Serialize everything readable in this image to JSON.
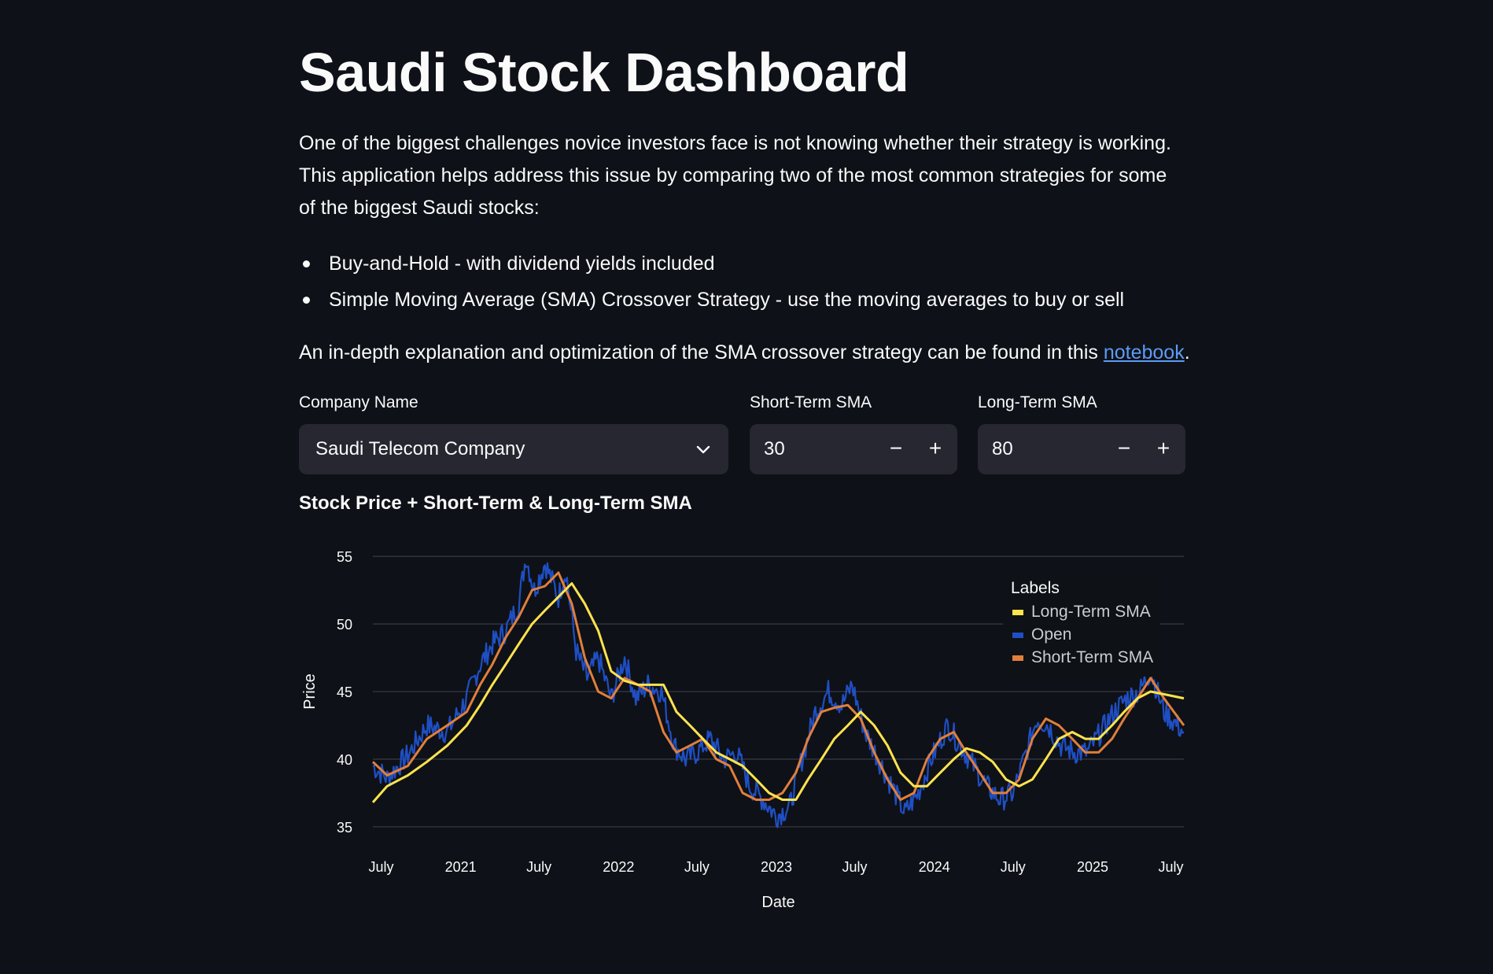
{
  "page": {
    "title": "Saudi Stock Dashboard",
    "intro": "One of the biggest challenges novice investors face is not knowing whether their strategy is working. This application helps address this issue by comparing two of the most common strategies for some of the biggest Saudi stocks:",
    "bullets": [
      "Buy-and-Hold - with dividend yields included",
      "Simple Moving Average (SMA) Crossover Strategy - use the moving averages to buy or sell"
    ],
    "notebook_prefix": "An in-depth explanation and optimization of the SMA crossover strategy can be found in this ",
    "notebook_link": "notebook",
    "notebook_suffix": "."
  },
  "controls": {
    "company_label": "Company Name",
    "company_value": "Saudi Telecom Company",
    "short_label": "Short-Term SMA",
    "short_value": "30",
    "long_label": "Long-Term SMA",
    "long_value": "80",
    "minus": "−",
    "plus": "+"
  },
  "chart_title": "Stock Price + Short-Term & Long-Term SMA",
  "legend": {
    "title": "Labels",
    "items": [
      "Long-Term SMA",
      "Open",
      "Short-Term SMA"
    ]
  },
  "colors": {
    "open": "#1f4fc4",
    "short_sma": "#e07f3c",
    "long_sma": "#ffe34d",
    "background": "#0e1117",
    "grid": "#31333f"
  },
  "chart_data": {
    "type": "line",
    "xlabel": "Date",
    "ylabel": "Price",
    "ylim": [
      34,
      56
    ],
    "yticks": [
      35,
      40,
      45,
      50,
      55
    ],
    "x_range": [
      "2020-06-12",
      "2025-07-31"
    ],
    "xticks": [
      {
        "date": "2020-07-01",
        "label": "July"
      },
      {
        "date": "2021-01-01",
        "label": "2021"
      },
      {
        "date": "2021-07-01",
        "label": "July"
      },
      {
        "date": "2022-01-01",
        "label": "2022"
      },
      {
        "date": "2022-07-01",
        "label": "July"
      },
      {
        "date": "2023-01-01",
        "label": "2023"
      },
      {
        "date": "2023-07-01",
        "label": "July"
      },
      {
        "date": "2024-01-01",
        "label": "2024"
      },
      {
        "date": "2024-07-01",
        "label": "July"
      },
      {
        "date": "2025-01-01",
        "label": "2025"
      },
      {
        "date": "2025-07-01",
        "label": "July"
      }
    ],
    "grid": true,
    "legend_position": "top-right",
    "series": [
      {
        "name": "Open",
        "x": [
          "2020-06-12",
          "2020-07-15",
          "2020-09-01",
          "2020-10-15",
          "2020-12-01",
          "2021-01-15",
          "2021-02-15",
          "2021-03-15",
          "2021-04-15",
          "2021-05-15",
          "2021-06-01",
          "2021-06-20",
          "2021-07-15",
          "2021-08-15",
          "2021-09-01",
          "2021-09-25",
          "2021-10-20",
          "2021-11-15",
          "2021-12-15",
          "2022-01-15",
          "2022-02-10",
          "2022-03-10",
          "2022-04-10",
          "2022-05-10",
          "2022-06-05",
          "2022-07-01",
          "2022-08-01",
          "2022-09-01",
          "2022-10-01",
          "2022-11-01",
          "2022-12-01",
          "2023-01-01",
          "2023-02-01",
          "2023-03-01",
          "2023-04-01",
          "2023-05-01",
          "2023-06-01",
          "2023-06-25",
          "2023-07-25",
          "2023-08-25",
          "2023-09-25",
          "2023-10-25",
          "2023-11-25",
          "2023-12-25",
          "2024-02-01",
          "2024-03-01",
          "2024-04-01",
          "2024-05-01",
          "2024-06-01",
          "2024-07-01",
          "2024-08-01",
          "2024-08-25",
          "2024-09-20",
          "2024-10-20",
          "2024-11-20",
          "2024-12-20",
          "2025-01-20",
          "2025-02-20",
          "2025-03-20",
          "2025-04-20",
          "2025-05-15",
          "2025-06-15",
          "2025-07-31"
        ],
        "y": [
          39.5,
          38.6,
          40.3,
          42.5,
          42.0,
          44.5,
          47.0,
          48.5,
          49.5,
          51.5,
          55.0,
          52.5,
          54.5,
          52.0,
          54.0,
          48.0,
          46.0,
          47.5,
          44.5,
          47.5,
          44.5,
          45.5,
          45.0,
          41.0,
          40.0,
          40.5,
          41.5,
          40.0,
          40.5,
          38.0,
          37.0,
          35.8,
          36.5,
          40.0,
          43.5,
          45.0,
          44.0,
          45.5,
          42.0,
          40.0,
          38.0,
          36.0,
          37.5,
          40.0,
          42.5,
          41.0,
          39.5,
          38.0,
          37.0,
          37.5,
          40.5,
          43.0,
          42.5,
          41.0,
          40.5,
          40.5,
          42.0,
          43.5,
          44.5,
          45.0,
          46.5,
          43.5,
          42.0
        ]
      },
      {
        "name": "Short-Term SMA",
        "x": [
          "2020-06-12",
          "2020-07-15",
          "2020-09-01",
          "2020-10-15",
          "2020-12-01",
          "2021-01-15",
          "2021-02-15",
          "2021-03-15",
          "2021-04-15",
          "2021-05-15",
          "2021-06-15",
          "2021-07-15",
          "2021-08-15",
          "2021-09-15",
          "2021-10-15",
          "2021-11-15",
          "2021-12-15",
          "2022-01-15",
          "2022-02-15",
          "2022-03-15",
          "2022-04-15",
          "2022-05-15",
          "2022-06-15",
          "2022-07-15",
          "2022-08-15",
          "2022-09-15",
          "2022-10-15",
          "2022-11-15",
          "2022-12-15",
          "2023-01-15",
          "2023-02-15",
          "2023-03-15",
          "2023-04-15",
          "2023-05-15",
          "2023-06-15",
          "2023-07-15",
          "2023-08-15",
          "2023-09-15",
          "2023-10-15",
          "2023-11-15",
          "2023-12-15",
          "2024-01-15",
          "2024-02-15",
          "2024-03-15",
          "2024-04-15",
          "2024-05-15",
          "2024-06-15",
          "2024-07-15",
          "2024-08-15",
          "2024-09-15",
          "2024-10-15",
          "2024-11-15",
          "2024-12-15",
          "2025-01-15",
          "2025-02-15",
          "2025-03-15",
          "2025-04-15",
          "2025-05-15",
          "2025-06-15",
          "2025-07-31"
        ],
        "y": [
          39.8,
          38.8,
          39.5,
          41.5,
          42.5,
          43.5,
          45.5,
          47.0,
          49.0,
          50.5,
          52.5,
          52.8,
          53.8,
          51.5,
          47.5,
          45.0,
          44.5,
          46.0,
          45.5,
          45.0,
          42.0,
          40.5,
          41.0,
          41.5,
          40.0,
          39.5,
          37.5,
          37.0,
          37.0,
          37.5,
          39.0,
          41.5,
          43.5,
          43.8,
          44.0,
          43.0,
          40.5,
          38.5,
          37.0,
          37.5,
          40.0,
          41.5,
          42.0,
          40.5,
          39.0,
          37.5,
          37.5,
          38.5,
          41.5,
          43.0,
          42.5,
          41.5,
          40.5,
          40.5,
          41.5,
          43.0,
          44.5,
          46.0,
          44.5,
          42.5
        ]
      },
      {
        "name": "Long-Term SMA",
        "x": [
          "2020-06-12",
          "2020-07-15",
          "2020-09-01",
          "2020-10-15",
          "2020-12-01",
          "2021-01-15",
          "2021-02-15",
          "2021-03-15",
          "2021-04-15",
          "2021-05-15",
          "2021-06-15",
          "2021-07-15",
          "2021-08-15",
          "2021-09-15",
          "2021-10-15",
          "2021-11-15",
          "2021-12-15",
          "2022-01-15",
          "2022-02-15",
          "2022-03-15",
          "2022-04-15",
          "2022-05-15",
          "2022-06-15",
          "2022-07-15",
          "2022-08-15",
          "2022-09-15",
          "2022-10-15",
          "2022-11-15",
          "2022-12-15",
          "2023-01-15",
          "2023-02-15",
          "2023-03-15",
          "2023-04-15",
          "2023-05-15",
          "2023-06-15",
          "2023-07-15",
          "2023-08-15",
          "2023-09-15",
          "2023-10-15",
          "2023-11-15",
          "2023-12-15",
          "2024-01-15",
          "2024-02-15",
          "2024-03-15",
          "2024-04-15",
          "2024-05-15",
          "2024-06-15",
          "2024-07-15",
          "2024-08-15",
          "2024-09-15",
          "2024-10-15",
          "2024-11-15",
          "2024-12-15",
          "2025-01-15",
          "2025-02-15",
          "2025-03-15",
          "2025-04-15",
          "2025-05-15",
          "2025-06-15",
          "2025-07-31"
        ],
        "y": [
          36.8,
          38.0,
          38.8,
          39.8,
          41.0,
          42.5,
          44.0,
          45.5,
          47.0,
          48.5,
          50.0,
          51.0,
          52.0,
          53.0,
          51.5,
          49.5,
          46.5,
          45.8,
          45.5,
          45.5,
          45.5,
          43.5,
          42.5,
          41.5,
          40.5,
          40.0,
          39.5,
          38.5,
          37.5,
          37.0,
          37.0,
          38.5,
          40.0,
          41.5,
          42.5,
          43.5,
          42.5,
          41.0,
          39.0,
          38.0,
          38.0,
          39.0,
          40.0,
          40.8,
          40.5,
          39.8,
          38.5,
          38.0,
          38.5,
          40.0,
          41.5,
          42.0,
          41.5,
          41.5,
          42.5,
          43.5,
          44.5,
          45.0,
          44.8,
          44.5
        ]
      }
    ]
  }
}
